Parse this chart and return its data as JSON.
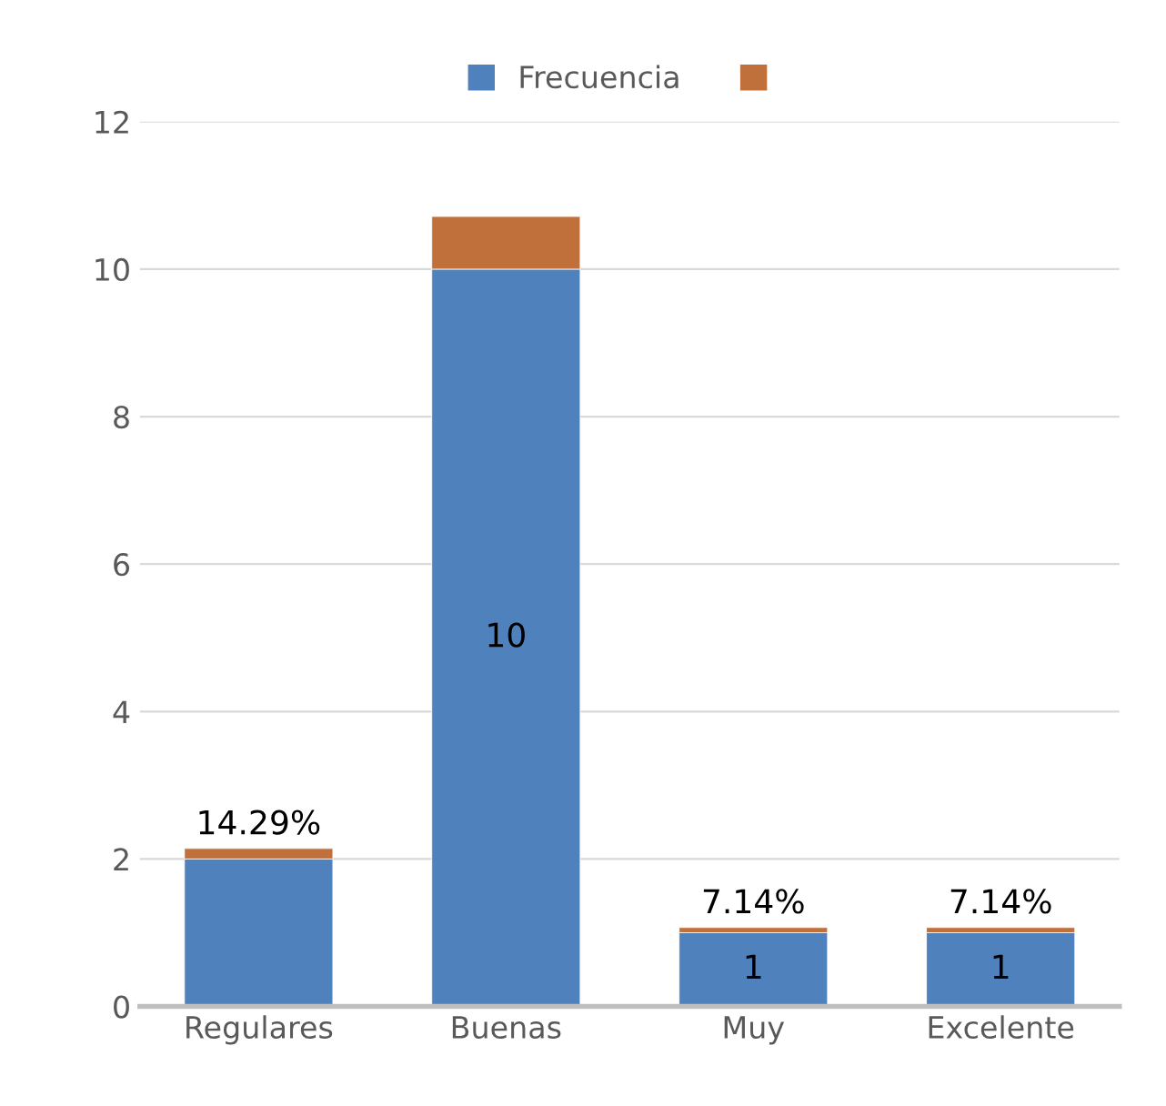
{
  "chart_data": {
    "type": "bar",
    "stacked": true,
    "categories": [
      "Regulares",
      "Buenas",
      "Muy",
      "Excelente"
    ],
    "series": [
      {
        "name": "Frecuencia",
        "color": "#4f81bd",
        "values": [
          2,
          10,
          1,
          1
        ],
        "value_labels": [
          null,
          "10",
          "1",
          "1"
        ]
      },
      {
        "color": "#c0703a",
        "values": [
          0.1429,
          0.7143,
          0.0714,
          0.0714
        ],
        "value_labels": [
          "14.29%",
          null,
          "7.14%",
          "7.14%"
        ]
      }
    ],
    "ylim": [
      0,
      12
    ],
    "yticks": [
      0,
      2,
      4,
      6,
      8,
      10,
      12
    ],
    "grid": "y",
    "legend": "top"
  }
}
